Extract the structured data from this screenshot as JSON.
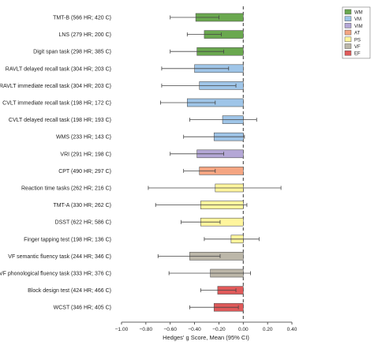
{
  "chart_data": {
    "type": "bar",
    "orientation": "horizontal",
    "xlabel": "Hedges' g Score, Mean (95% CI)",
    "xlim": [
      -1.0,
      0.4
    ],
    "xticks": [
      "−1.00",
      "−0.80",
      "−0.60",
      "−0.40",
      "−0.20",
      "0.00",
      "0.20",
      "0.40"
    ],
    "xtick_values": [
      -1.0,
      -0.8,
      -0.6,
      -0.4,
      -0.2,
      0.0,
      0.2,
      0.4
    ],
    "reference_line": 0,
    "legend_position": "top-right",
    "legend": [
      {
        "code": "WM",
        "color": "#6aa84f"
      },
      {
        "code": "VM",
        "color": "#9fc5e8"
      },
      {
        "code": "VIM",
        "color": "#b4a7d6"
      },
      {
        "code": "AT",
        "color": "#f4a582"
      },
      {
        "code": "PS",
        "color": "#fff59d"
      },
      {
        "code": "VF",
        "color": "#bcb7a9"
      },
      {
        "code": "EF",
        "color": "#e05a5a"
      }
    ],
    "rows": [
      {
        "label": "TMT-B (566 HR; 420 C)",
        "domain": "WM",
        "value": -0.39,
        "ci": [
          -0.6,
          -0.2
        ]
      },
      {
        "label": "LNS (279 HR; 200 C)",
        "domain": "WM",
        "value": -0.32,
        "ci": [
          -0.46,
          -0.18
        ]
      },
      {
        "label": "Digit span task (298 HR; 385 C)",
        "domain": "WM",
        "value": -0.38,
        "ci": [
          -0.6,
          -0.16
        ]
      },
      {
        "label": "RAVLT delayed recall task (304 HR; 203 C)",
        "domain": "VM",
        "value": -0.4,
        "ci": [
          -0.67,
          -0.12
        ]
      },
      {
        "label": "RAVLT immediate recall task (304 HR; 203 C)",
        "domain": "VM",
        "value": -0.36,
        "ci": [
          -0.67,
          -0.06
        ]
      },
      {
        "label": "CVLT immediate recall task (198 HR; 172 C)",
        "domain": "VM",
        "value": -0.46,
        "ci": [
          -0.68,
          -0.23
        ]
      },
      {
        "label": "CVLT delayed recall task (198 HR; 193 C)",
        "domain": "VM",
        "value": -0.17,
        "ci": [
          -0.44,
          0.11
        ]
      },
      {
        "label": "WMS (233 HR; 143 C)",
        "domain": "VM",
        "value": -0.24,
        "ci": [
          -0.49,
          0.01
        ]
      },
      {
        "label": "VRI (291 HR; 198 C)",
        "domain": "VIM",
        "value": -0.38,
        "ci": [
          -0.6,
          -0.16
        ]
      },
      {
        "label": "CPT (490 HR; 297 C)",
        "domain": "AT",
        "value": -0.36,
        "ci": [
          -0.49,
          -0.23
        ]
      },
      {
        "label": "Reaction time tasks (262 HR; 216 C)",
        "domain": "PS",
        "value": -0.23,
        "ci": [
          -0.78,
          0.31
        ]
      },
      {
        "label": "TMT-A (330 HR; 262 C)",
        "domain": "PS",
        "value": -0.35,
        "ci": [
          -0.72,
          0.03
        ]
      },
      {
        "label": "DSST (622 HR; 586 C)",
        "domain": "PS",
        "value": -0.35,
        "ci": [
          -0.51,
          -0.19
        ]
      },
      {
        "label": "Finger tapping test (198 HR; 136 C)",
        "domain": "PS",
        "value": -0.1,
        "ci": [
          -0.32,
          0.13
        ]
      },
      {
        "label": "VF semantic fluency task (244 HR; 346 C)",
        "domain": "VF",
        "value": -0.44,
        "ci": [
          -0.7,
          -0.19
        ]
      },
      {
        "label": "VF phonological fluency task (333 HR; 376 C)",
        "domain": "VF",
        "value": -0.27,
        "ci": [
          -0.61,
          0.06
        ]
      },
      {
        "label": "Block design test (424 HR; 466 C)",
        "domain": "EF",
        "value": -0.21,
        "ci": [
          -0.35,
          -0.06
        ]
      },
      {
        "label": "WCST (346 HR; 405 C)",
        "domain": "EF",
        "value": -0.24,
        "ci": [
          -0.44,
          -0.04
        ]
      }
    ]
  }
}
